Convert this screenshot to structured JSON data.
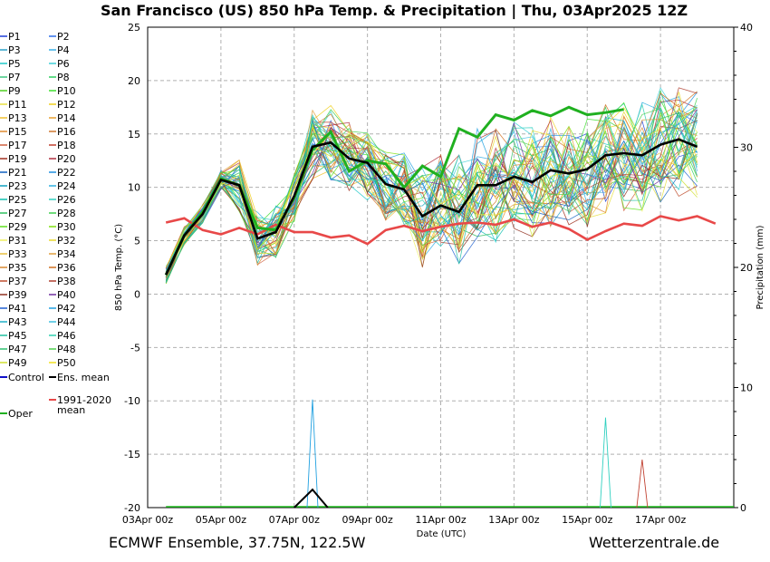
{
  "chart_data": {
    "type": "line",
    "title": "San Francisco  (US)  850 hPa Temp. & Precipitation | Thu, 03Apr2025 12Z",
    "footer_left": "ECMWF Ensemble, 37.75N, 122.5W",
    "footer_right": "Wetterzentrale.de",
    "xlabel": "Date (UTC)",
    "ylabel": "850 hPa Temp. (°C)",
    "y2label": "Precipitation (mm)",
    "ylim": [
      -20,
      25
    ],
    "y2lim": [
      0,
      40
    ],
    "grid": true,
    "legend_position": "left",
    "x_tick_labels": [
      "03Apr 00z",
      "05Apr 00z",
      "07Apr 00z",
      "09Apr 00z",
      "11Apr 00z",
      "13Apr 00z",
      "15Apr 00z",
      "17Apr 00z"
    ],
    "y_tick_labels": [
      "25",
      "20",
      "15",
      "10",
      "5",
      "0",
      "-5",
      "-10",
      "-15",
      "-20"
    ],
    "y2_tick_labels": [
      "40",
      "30",
      "20",
      "10",
      "0"
    ],
    "x_hours": [
      12,
      24,
      36,
      48,
      60,
      72,
      84,
      96,
      108,
      120,
      132,
      144,
      156,
      168,
      180,
      192,
      204,
      216,
      222,
      228,
      234,
      240,
      246,
      252,
      258,
      264,
      270,
      276,
      282,
      288,
      294,
      300,
      306,
      312,
      318,
      324,
      330,
      336,
      342,
      348,
      354,
      360,
      366
    ],
    "members_temp_description": "P1–P50 ensemble members spread around the ensemble mean",
    "legend_entries": [
      "P1",
      "P2",
      "P3",
      "P4",
      "P5",
      "P6",
      "P7",
      "P8",
      "P9",
      "P10",
      "P11",
      "P12",
      "P13",
      "P14",
      "P15",
      "P16",
      "P17",
      "P18",
      "P19",
      "P20",
      "P21",
      "P22",
      "P23",
      "P24",
      "P25",
      "P26",
      "P27",
      "P28",
      "P29",
      "P30",
      "P31",
      "P32",
      "P33",
      "P34",
      "P35",
      "P36",
      "P37",
      "P38",
      "P39",
      "P40",
      "P41",
      "P42",
      "P43",
      "P44",
      "P45",
      "P46",
      "P47",
      "P48",
      "P49",
      "P50"
    ],
    "legend_colors": [
      "#1f3fd8",
      "#2f6fe8",
      "#2aa0c8",
      "#3ab0e8",
      "#20c8c8",
      "#40d0d8",
      "#40c880",
      "#30d060",
      "#50d020",
      "#40e030",
      "#e8e040",
      "#f0d020",
      "#f0c030",
      "#e8a030",
      "#e08a30",
      "#d07830",
      "#d06040",
      "#c04030",
      "#a03020",
      "#b03040",
      "#1060c0",
      "#2090e0",
      "#10a0c0",
      "#30b0e0",
      "#10c0b0",
      "#30d0c0",
      "#30c060",
      "#40d050",
      "#60e020",
      "#80e010",
      "#f0f060",
      "#e8d830",
      "#e8c040",
      "#e0a040",
      "#d88830",
      "#d07020",
      "#c05030",
      "#b04030",
      "#903020",
      "#7030a0",
      "#2060d0",
      "#20a0e0",
      "#20b0c8",
      "#40c0e0",
      "#20c0a0",
      "#30d0b0",
      "#30c070",
      "#50d050",
      "#d0e030",
      "#f0e020"
    ],
    "series": [
      {
        "name": "Ens. mean",
        "color": "#000000",
        "values": [
          1.8,
          5.5,
          7.5,
          10.7,
          10.2,
          5.2,
          5.8,
          9.2,
          13.8,
          14.2,
          12.7,
          12.3,
          10.3,
          9.8,
          7.3,
          8.3,
          7.7,
          10.2,
          10.2,
          11.0,
          10.5,
          11.6,
          11.3,
          11.7,
          13.0,
          13.2,
          13.0,
          14.0,
          14.5,
          13.8
        ]
      },
      {
        "name": "Oper",
        "color": "#20b020",
        "values": [
          1.8,
          5.5,
          7.7,
          10.8,
          10.2,
          6.2,
          6.0,
          9.0,
          13.5,
          15.2,
          11.5,
          12.5,
          12.2,
          10.0,
          12.0,
          11.0,
          15.5,
          14.7,
          16.8,
          16.3,
          17.2,
          16.7,
          17.5,
          16.8,
          17.0,
          17.3
        ]
      },
      {
        "name": "1991-2020 mean",
        "color": "#e84848",
        "values": [
          6.7,
          7.1,
          6.0,
          5.6,
          6.2,
          5.6,
          6.5,
          5.8,
          5.8,
          5.3,
          5.5,
          4.7,
          6.0,
          6.4,
          5.9,
          6.3,
          6.6,
          6.7,
          6.5,
          7.0,
          6.3,
          6.7,
          6.1,
          5.1,
          5.9,
          6.6,
          6.4,
          7.3,
          6.9,
          7.3,
          6.6
        ]
      }
    ],
    "precip_mean_mm": [
      0,
      0,
      0,
      0,
      0,
      0,
      0,
      0,
      0,
      0,
      0,
      0,
      0,
      0,
      0,
      0,
      0,
      0,
      0,
      0,
      0,
      0,
      0,
      0,
      0,
      0,
      0,
      0,
      0,
      1,
      1.5,
      0.5,
      0,
      0,
      0,
      0,
      0,
      0,
      0,
      0,
      0,
      0,
      0
    ],
    "precip_peaks_mm": [
      {
        "x": "07Apr 12z",
        "value": 9
      },
      {
        "x": "16Apr 00z",
        "value": 7.5
      },
      {
        "x": "17Apr 12z",
        "value": 4
      }
    ],
    "legend_controls": [
      {
        "label": "Control",
        "color": "#1010c8"
      },
      {
        "label": "Ens. mean",
        "color": "#000000"
      },
      {
        "label": "1991-2020 mean",
        "color": "#e84848"
      },
      {
        "label": "Oper",
        "color": "#20b020"
      }
    ]
  }
}
